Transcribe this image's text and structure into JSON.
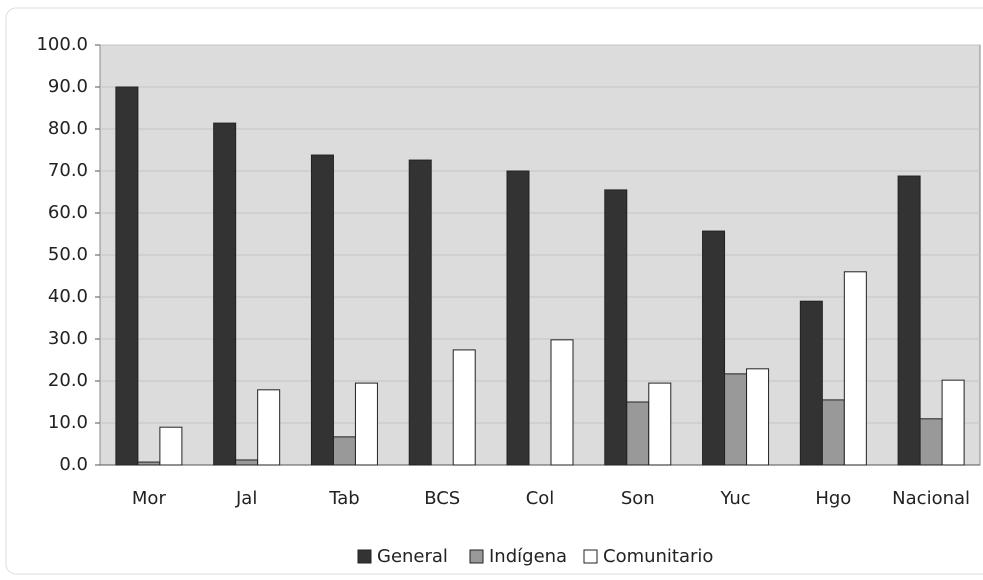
{
  "chart_data": {
    "type": "bar",
    "categories": [
      "Mor",
      "Jal",
      "Tab",
      "BCS",
      "Col",
      "Son",
      "Yuc",
      "Hgo",
      "Nacional"
    ],
    "series": [
      {
        "name": "General",
        "color": "#333333",
        "values": [
          90.0,
          81.4,
          73.8,
          72.6,
          70.0,
          65.5,
          55.7,
          39.0,
          68.8
        ]
      },
      {
        "name": "Indígena",
        "color": "#999999",
        "values": [
          0.7,
          1.2,
          6.7,
          null,
          null,
          15.0,
          21.7,
          15.5,
          11.0
        ]
      },
      {
        "name": "Comunitario",
        "color": "#ffffff",
        "values": [
          9.0,
          17.9,
          19.5,
          27.4,
          29.8,
          19.5,
          22.9,
          46.0,
          20.2
        ]
      }
    ],
    "ylim": [
      0,
      100
    ],
    "yticks": [
      {
        "value": 0,
        "label": "0.0"
      },
      {
        "value": 10,
        "label": "10.0"
      },
      {
        "value": 20,
        "label": "20.0"
      },
      {
        "value": 30,
        "label": "30.0"
      },
      {
        "value": 40,
        "label": "40.0"
      },
      {
        "value": 50,
        "label": "50.0"
      },
      {
        "value": 60,
        "label": "60.0"
      },
      {
        "value": 70,
        "label": "70.0"
      },
      {
        "value": 80,
        "label": "80.0"
      },
      {
        "value": 90,
        "label": "90.0"
      },
      {
        "value": 100,
        "label": "100.0"
      }
    ],
    "grid": true,
    "legend": "bottom"
  }
}
